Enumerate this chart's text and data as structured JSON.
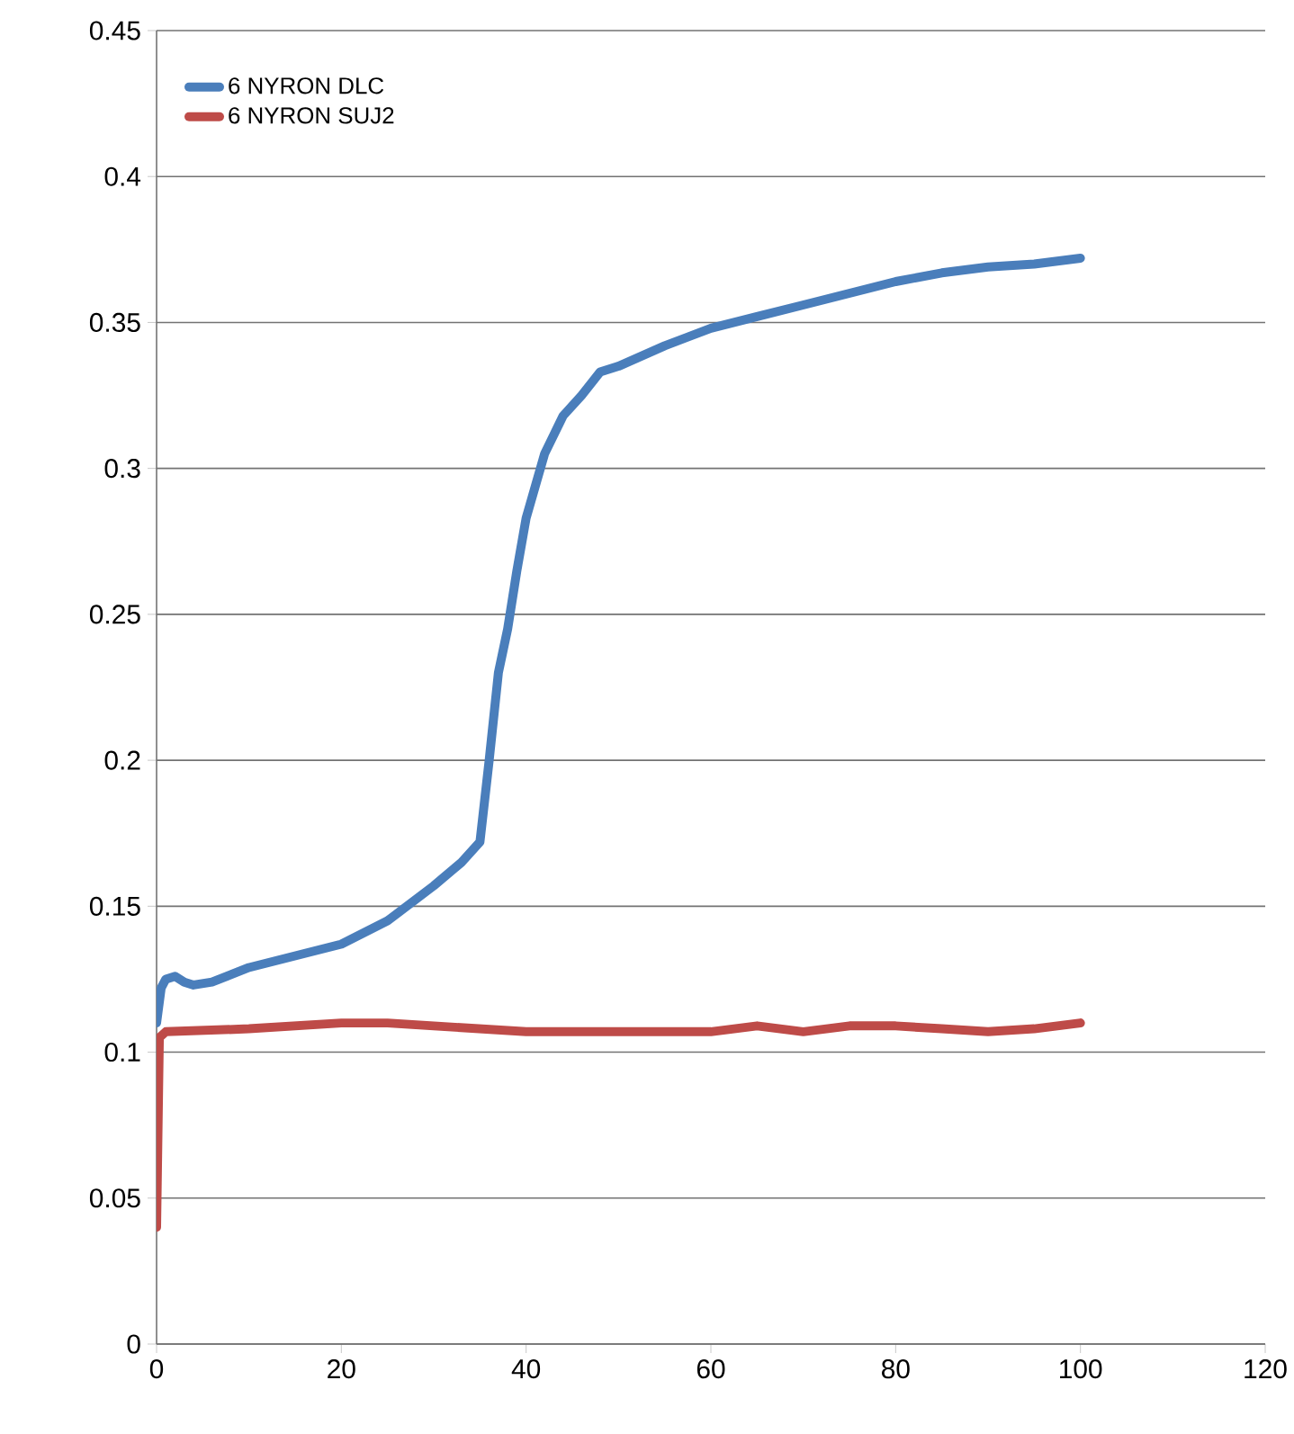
{
  "chart_data": {
    "type": "line",
    "xlim": [
      0,
      120
    ],
    "ylim": [
      0,
      0.45
    ],
    "xticks": [
      0,
      20,
      40,
      60,
      80,
      100,
      120
    ],
    "yticks": [
      0,
      0.05,
      0.1,
      0.15,
      0.2,
      0.25,
      0.3,
      0.35,
      0.4,
      0.45
    ],
    "grid": "y",
    "legend": "top left",
    "marker": "none",
    "line_style": "solid",
    "series": [
      {
        "name": "6 NYRON DLC",
        "color": "#4a7ebb",
        "x": [
          0,
          0.5,
          1,
          2,
          3,
          4,
          6,
          10,
          15,
          20,
          25,
          30,
          33,
          35,
          36,
          37,
          38,
          39,
          40,
          42,
          44,
          46,
          48,
          50,
          55,
          60,
          65,
          70,
          75,
          80,
          85,
          90,
          95,
          100
        ],
        "values": [
          0.11,
          0.122,
          0.125,
          0.126,
          0.124,
          0.123,
          0.124,
          0.129,
          0.133,
          0.137,
          0.145,
          0.157,
          0.165,
          0.172,
          0.2,
          0.23,
          0.245,
          0.265,
          0.283,
          0.305,
          0.318,
          0.325,
          0.333,
          0.335,
          0.342,
          0.348,
          0.352,
          0.356,
          0.36,
          0.364,
          0.367,
          0.369,
          0.37,
          0.372
        ]
      },
      {
        "name": "6 NYRON SUJ2",
        "color": "#be4b48",
        "x": [
          0,
          0.3,
          1,
          10,
          20,
          25,
          30,
          40,
          50,
          60,
          65,
          70,
          75,
          80,
          85,
          90,
          95,
          100
        ],
        "values": [
          0.04,
          0.105,
          0.107,
          0.108,
          0.11,
          0.11,
          0.109,
          0.107,
          0.107,
          0.107,
          0.109,
          0.107,
          0.109,
          0.109,
          0.108,
          0.107,
          0.108,
          0.11
        ]
      }
    ]
  }
}
